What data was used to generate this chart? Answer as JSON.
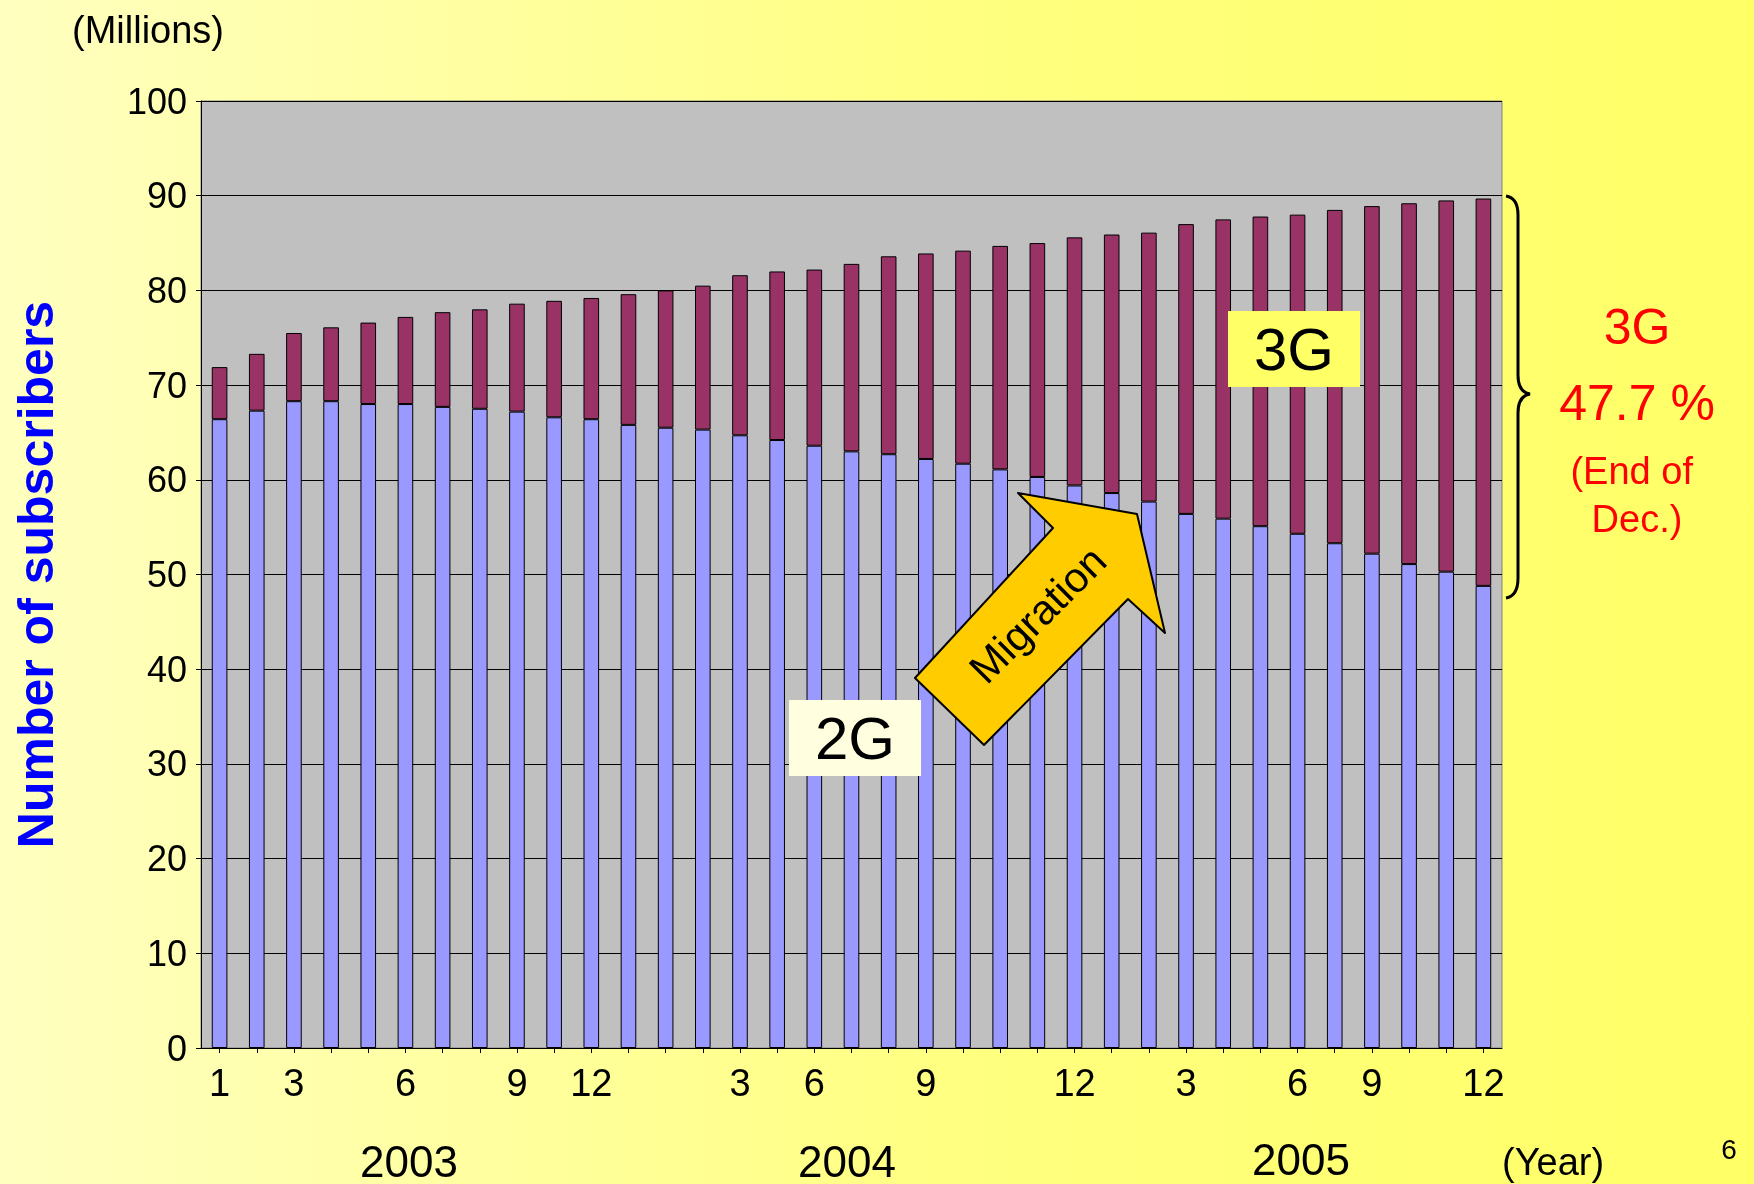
{
  "chart_data": {
    "type": "bar",
    "stacked": true,
    "categories": [
      "1",
      null,
      "3",
      null,
      null,
      "6",
      null,
      null,
      "9",
      null,
      "12",
      null,
      null,
      null,
      "3",
      null,
      "6",
      null,
      null,
      "9",
      null,
      null,
      null,
      "12",
      null,
      null,
      "3",
      null,
      null,
      "6",
      null,
      "9",
      null,
      null,
      "12"
    ],
    "series": [
      {
        "name": "2G",
        "color": "#9999ff",
        "values": [
          66.4,
          67.3,
          68.3,
          68.3,
          68.0,
          68.0,
          67.7,
          67.5,
          67.2,
          66.6,
          66.4,
          65.8,
          65.5,
          65.3,
          64.7,
          64.2,
          63.6,
          63.0,
          62.7,
          62.2,
          61.7,
          61.1,
          60.3,
          59.4,
          58.6,
          57.7,
          56.4,
          55.9,
          55.1,
          54.3,
          53.3,
          52.2,
          51.1,
          50.3,
          48.8
        ]
      },
      {
        "name": "3G",
        "color": "#993366",
        "values": [
          5.5,
          6.0,
          7.2,
          7.8,
          8.6,
          9.2,
          10.0,
          10.5,
          11.4,
          12.3,
          12.8,
          13.8,
          14.5,
          15.2,
          16.9,
          17.8,
          18.6,
          19.8,
          20.9,
          21.7,
          22.5,
          23.6,
          24.7,
          26.2,
          27.3,
          28.4,
          30.6,
          31.6,
          32.7,
          33.7,
          35.2,
          36.7,
          38.1,
          39.2,
          40.9
        ]
      }
    ],
    "ylabel": "Number of subscribers",
    "xlabel": "(Year)",
    "ylim": [
      0,
      100
    ],
    "yticks": [
      0,
      10,
      20,
      30,
      40,
      50,
      60,
      70,
      80,
      90,
      100
    ],
    "grid": "y",
    "annotations": [
      "(Millions)",
      "Migration",
      "3G",
      "47.7 %",
      "(End of Dec.)",
      "2003",
      "2004",
      "2005",
      "6"
    ]
  }
}
